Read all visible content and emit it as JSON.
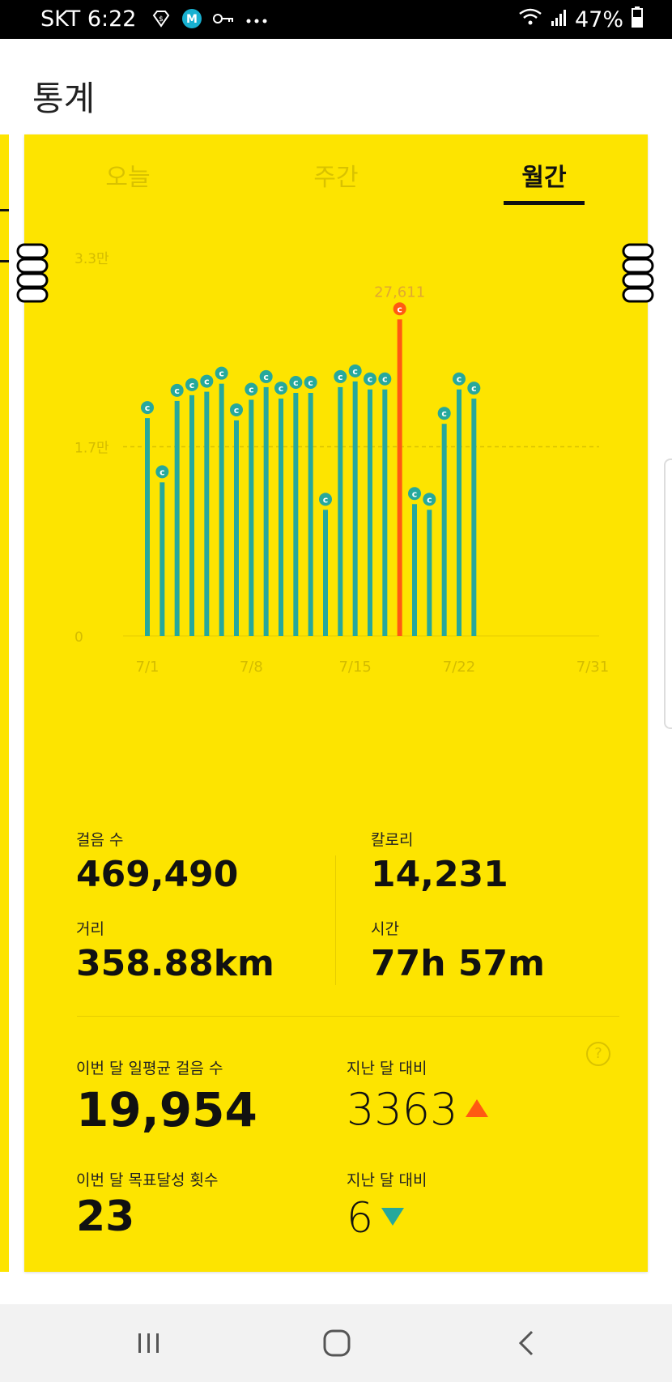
{
  "status_bar": {
    "carrier_time": "SKT 6:22",
    "battery": "47%",
    "icons": [
      "supercash-icon",
      "m-app-icon",
      "key-icon",
      "more-dots-icon",
      "wifi-icon",
      "signal-icon",
      "battery-icon"
    ]
  },
  "header": {
    "title": "통계"
  },
  "tabs": [
    {
      "label": "오늘",
      "active": false
    },
    {
      "label": "주간",
      "active": false
    },
    {
      "label": "월간",
      "active": true
    }
  ],
  "chart_data": {
    "type": "bar",
    "title": "",
    "xlabel": "",
    "ylabel": "",
    "ylim": [
      0,
      33000
    ],
    "y_ticks": [
      {
        "value": 0,
        "label": "0"
      },
      {
        "value": 16500,
        "label": "1.7만"
      },
      {
        "value": 33000,
        "label": "3.3만"
      }
    ],
    "x_ticks": [
      {
        "day": 1,
        "label": "7/1"
      },
      {
        "day": 8,
        "label": "7/8"
      },
      {
        "day": 15,
        "label": "7/15"
      },
      {
        "day": 22,
        "label": "7/22"
      },
      {
        "day": 31,
        "label": "7/31"
      }
    ],
    "x_range": [
      1,
      31
    ],
    "days": [
      1,
      2,
      3,
      4,
      5,
      6,
      7,
      8,
      9,
      10,
      11,
      12,
      13,
      14,
      15,
      16,
      17,
      18,
      19,
      20,
      21,
      22,
      23
    ],
    "values": [
      19000,
      13400,
      20500,
      21000,
      21300,
      22000,
      18800,
      20600,
      21700,
      20700,
      21200,
      21200,
      11000,
      21700,
      22200,
      21500,
      21500,
      27611,
      11500,
      11000,
      18500,
      21500,
      20700
    ],
    "highlight": {
      "day": 18,
      "label": "27,611",
      "color": "#ff5a12"
    },
    "bar_color": "#26a89c",
    "reference_line": 16500,
    "marker_letter": "c",
    "grid": false
  },
  "stats": {
    "steps_label": "걸음 수",
    "steps_value": "469,490",
    "calories_label": "칼로리",
    "calories_value": "14,231",
    "distance_label": "거리",
    "distance_value": "358.88km",
    "time_label": "시간",
    "time_value": "77h 57m"
  },
  "monthly": {
    "avg_label": "이번 달 일평균 걸음 수",
    "avg_value": "19,954",
    "avg_compare_label": "지난 달 대비",
    "avg_compare_value": "3363",
    "avg_compare_trend": "up",
    "goal_label": "이번 달 목표달성 횟수",
    "goal_value": "23",
    "goal_compare_label": "지난 달 대비",
    "goal_compare_value": "6",
    "goal_compare_trend": "down",
    "help_symbol": "?"
  },
  "colors": {
    "card": "#fde400",
    "teal": "#26a89c",
    "orange": "#ff5a12"
  }
}
